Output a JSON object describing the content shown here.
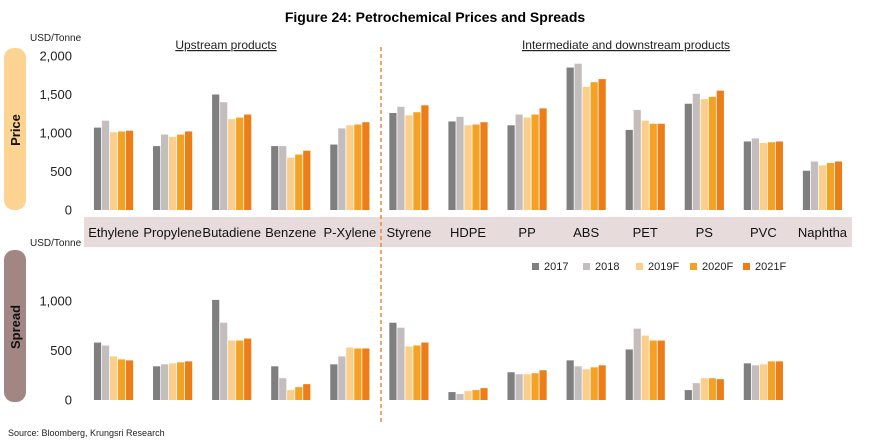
{
  "title": "Figure 24: Petrochemical Prices and Spreads",
  "source": "Source: Bloomberg, Krungsri Research",
  "group_labels": [
    "Upstream products",
    "Intermediate and downstream products"
  ],
  "colors": {
    "2017": "#7f7f7f",
    "2018": "#c4bdbd",
    "2019F": "#fbce8c",
    "2020F": "#f5a123",
    "2021F": "#ed7d17",
    "price_tab": "#fdd392",
    "spread_tab": "#a18683",
    "category_band": "#e7dcdb",
    "divider": "#e8842d"
  },
  "chart_data": [
    {
      "type": "bar",
      "panel": "Price",
      "unit_label": "USD/Tonne",
      "categories": [
        "Ethylene",
        "Propylene",
        "Butadiene",
        "Benzene",
        "P-Xylene",
        "Styrene",
        "HDPE",
        "PP",
        "ABS",
        "PET",
        "PS",
        "PVC",
        "Naphtha"
      ],
      "ylim": [
        0,
        2000
      ],
      "yticks": [
        "0",
        "500",
        "1,000",
        "1,500",
        "2,000"
      ],
      "ytick_values": [
        0,
        500,
        1000,
        1500,
        2000
      ],
      "series": [
        {
          "name": "2017",
          "values": [
            1070,
            830,
            1500,
            830,
            850,
            1260,
            1150,
            1100,
            1850,
            1040,
            1380,
            890,
            510
          ]
        },
        {
          "name": "2018",
          "values": [
            1160,
            980,
            1400,
            830,
            1060,
            1340,
            1210,
            1240,
            1900,
            1300,
            1510,
            930,
            630
          ]
        },
        {
          "name": "2019F",
          "values": [
            1010,
            950,
            1180,
            680,
            1100,
            1230,
            1100,
            1200,
            1600,
            1160,
            1440,
            870,
            580
          ]
        },
        {
          "name": "2020F",
          "values": [
            1020,
            980,
            1200,
            720,
            1110,
            1270,
            1110,
            1240,
            1660,
            1120,
            1470,
            880,
            610
          ]
        },
        {
          "name": "2021F",
          "values": [
            1030,
            1020,
            1240,
            770,
            1140,
            1360,
            1140,
            1320,
            1700,
            1120,
            1550,
            890,
            630
          ]
        }
      ]
    },
    {
      "type": "bar",
      "panel": "Spread",
      "unit_label": "USD/Tonne",
      "categories": [
        "Ethylene",
        "Propylene",
        "Butadiene",
        "Benzene",
        "P-Xylene",
        "Styrene",
        "HDPE",
        "PP",
        "ABS",
        "PET",
        "PS",
        "PVC",
        "Naphtha"
      ],
      "ylim": [
        0,
        1100
      ],
      "yticks": [
        "0",
        "500",
        "1,000"
      ],
      "ytick_values": [
        0,
        500,
        1000
      ],
      "series": [
        {
          "name": "2017",
          "values": [
            580,
            340,
            1010,
            340,
            360,
            780,
            80,
            280,
            400,
            510,
            100,
            370,
            null
          ]
        },
        {
          "name": "2018",
          "values": [
            550,
            360,
            780,
            220,
            440,
            730,
            60,
            260,
            340,
            720,
            170,
            350,
            null
          ]
        },
        {
          "name": "2019F",
          "values": [
            440,
            370,
            600,
            100,
            530,
            540,
            90,
            260,
            310,
            650,
            220,
            360,
            null
          ]
        },
        {
          "name": "2020F",
          "values": [
            410,
            380,
            600,
            130,
            520,
            550,
            100,
            270,
            330,
            600,
            220,
            390,
            null
          ]
        },
        {
          "name": "2021F",
          "values": [
            400,
            390,
            620,
            160,
            520,
            580,
            120,
            300,
            350,
            600,
            210,
            390,
            null
          ]
        }
      ]
    }
  ]
}
